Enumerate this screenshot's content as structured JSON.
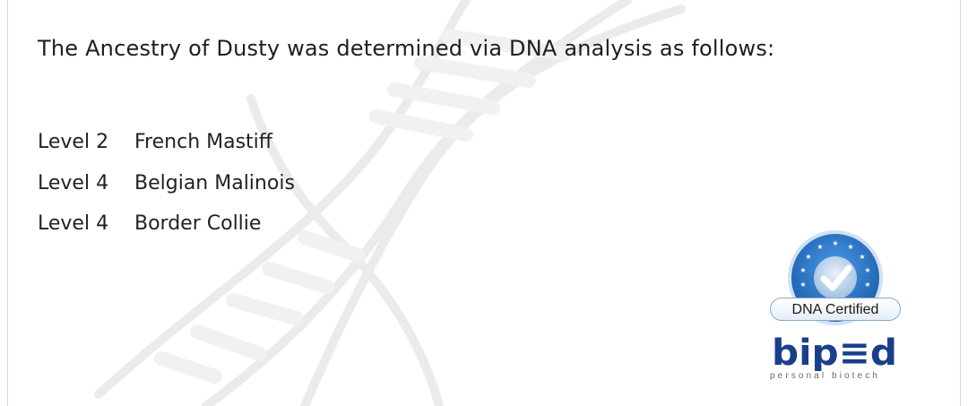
{
  "document": {
    "headline": "The Ancestry of Dusty was determined via DNA analysis as follows:",
    "ancestry": [
      {
        "level": "Level 2",
        "breed": "French Mastiff"
      },
      {
        "level": "Level 4",
        "breed": "Belgian Malinois"
      },
      {
        "level": "Level 4",
        "breed": "Border Collie"
      }
    ]
  },
  "seal": {
    "label": "DNA Certified",
    "icon": "checkmark-seal-icon",
    "color": "#2a78c8"
  },
  "brand": {
    "logo_text": "bip≡d",
    "tagline": "personal biotech",
    "color": "#1a3f8a"
  },
  "watermark": {
    "icon": "dna-helix-icon"
  }
}
